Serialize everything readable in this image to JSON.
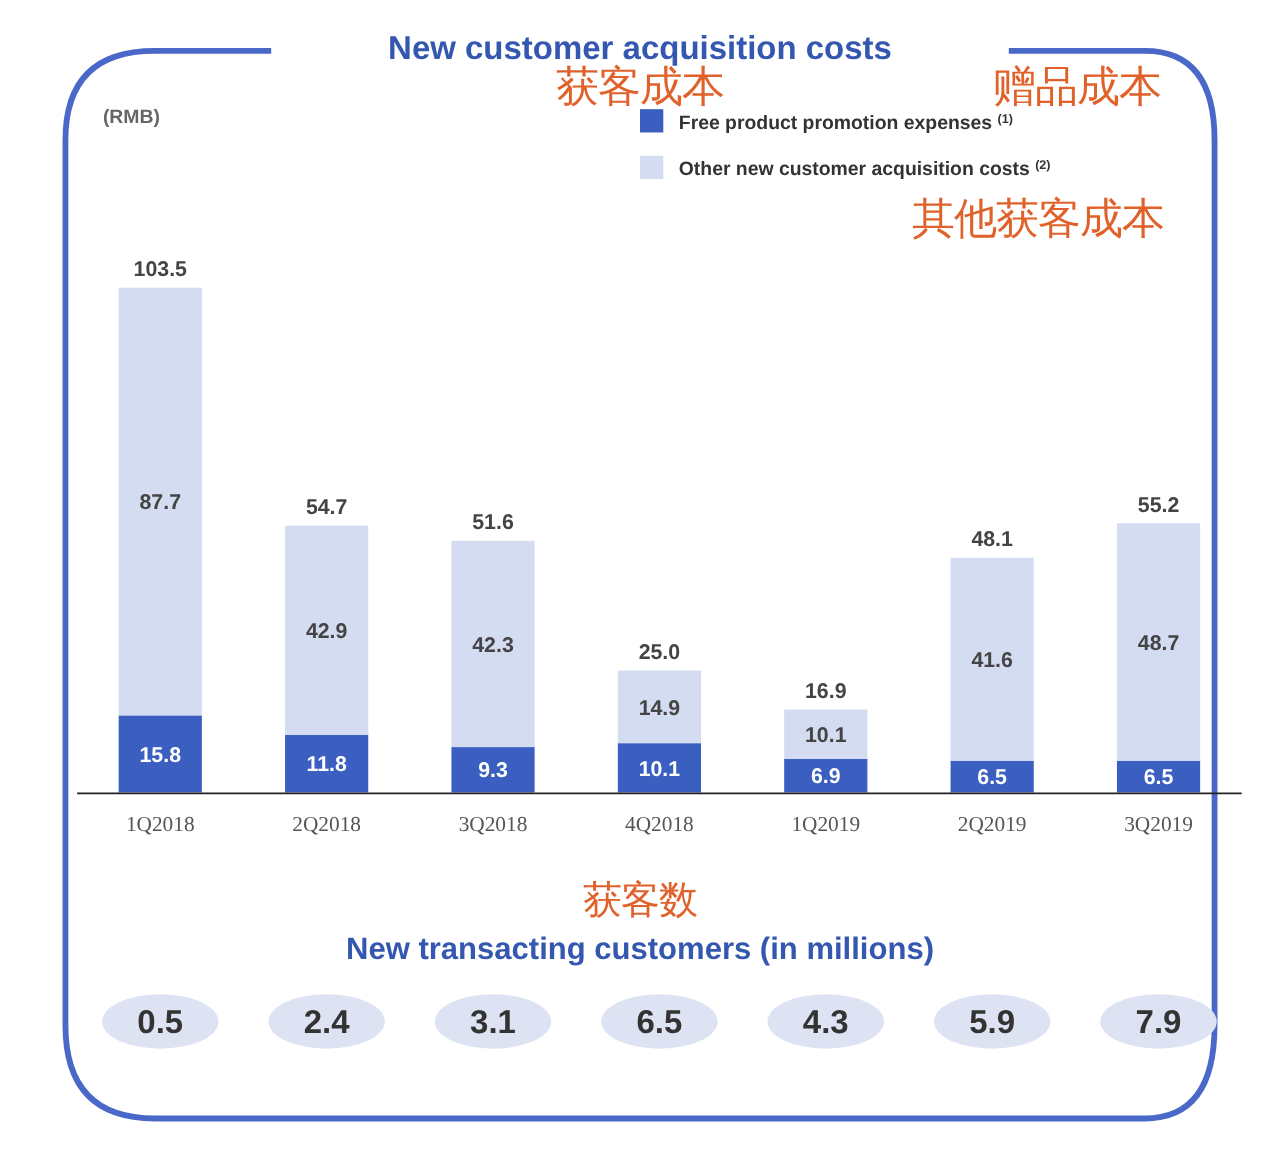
{
  "chart_data": [
    {
      "type": "bar",
      "title": "New customer acquisition costs",
      "ylabel": "(RMB)",
      "stacked": true,
      "legend": "top right",
      "data_labels": true,
      "categories": [
        "1Q2018",
        "2Q2018",
        "3Q2018",
        "4Q2018",
        "1Q2019",
        "2Q2019",
        "3Q2019"
      ],
      "series": [
        {
          "name": "Free product promotion expenses $^{(1)}$",
          "color": "#3a5fc0",
          "values": [
            15.8,
            11.8,
            9.3,
            10.1,
            6.9,
            6.5,
            6.5
          ]
        },
        {
          "name": "Other new customer acquisition costs $^{(2)}$",
          "color": "#d3dcf0",
          "values": [
            87.7,
            42.9,
            42.3,
            14.9,
            10.1,
            41.6,
            48.7
          ]
        }
      ],
      "totals": [
        "103.5",
        "54.7",
        "51.6",
        "25.0",
        "16.9",
        "48.1",
        "55.2"
      ],
      "annotations": [
        "获客成本",
        "赠品成本",
        "其他获客成本"
      ]
    },
    {
      "type": "other",
      "title": "New transacting customers (in millions)",
      "data_labels": true,
      "color": "#dde3f3",
      "categories": [
        null,
        null,
        null,
        null,
        null,
        null,
        null
      ],
      "values": [
        0.5,
        2.4,
        3.1,
        6.5,
        4.3,
        5.9,
        7.9
      ],
      "annotations": [
        "获客数"
      ]
    }
  ]
}
